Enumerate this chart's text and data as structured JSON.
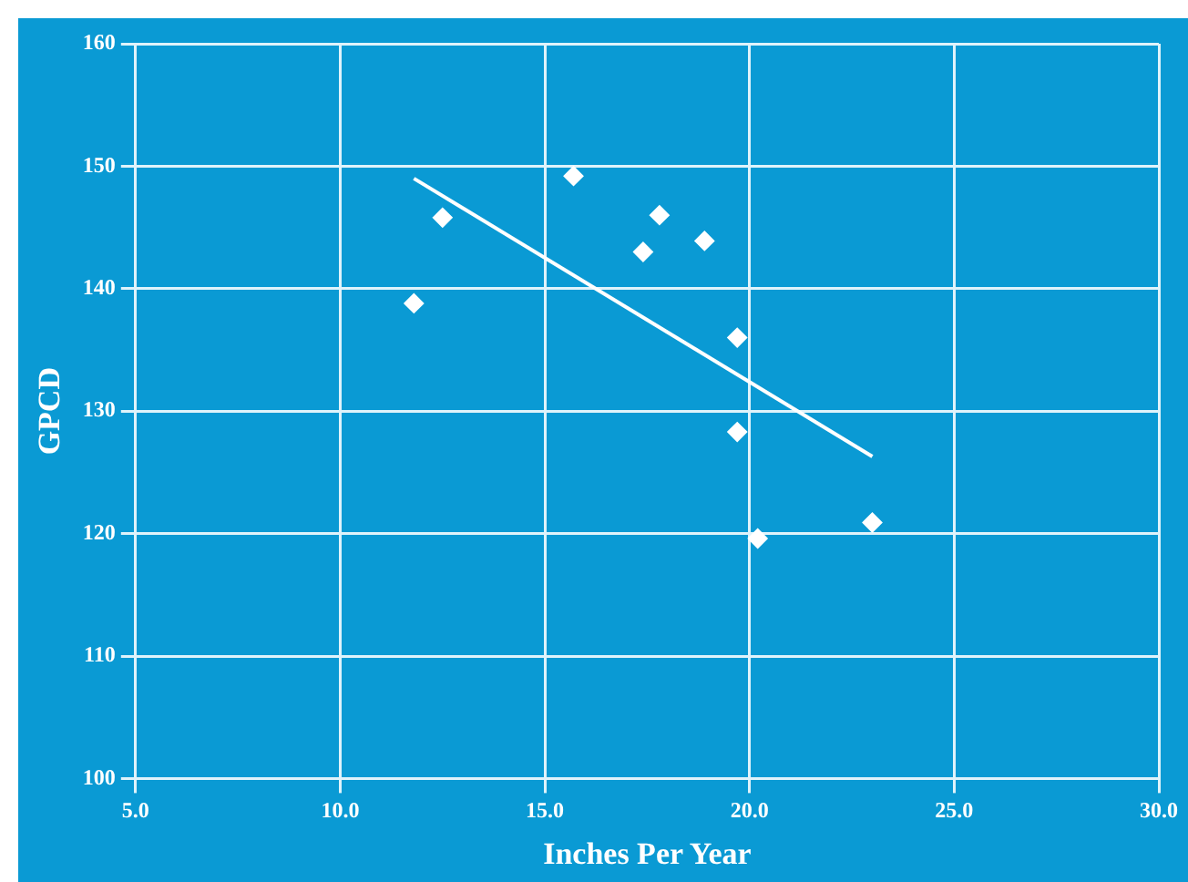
{
  "chart_data": {
    "type": "scatter",
    "xlabel": "Inches Per Year",
    "ylabel": "GPCD",
    "xlim": [
      5,
      30
    ],
    "xticks": [
      {
        "value": 5,
        "label": "5.0"
      },
      {
        "value": 10,
        "label": "10.0"
      },
      {
        "value": 15,
        "label": "15.0"
      },
      {
        "value": 20,
        "label": "20.0"
      },
      {
        "value": 25,
        "label": "25.0"
      },
      {
        "value": 30,
        "label": "30.0"
      }
    ],
    "ylim": [
      100,
      160
    ],
    "yticks": [
      100,
      110,
      120,
      130,
      140,
      150,
      160
    ],
    "grid": true,
    "series": [
      {
        "marker": "diamond",
        "color": "#ffffff",
        "x": [
          11.8,
          12.5,
          15.7,
          17.4,
          17.8,
          18.9,
          19.7,
          19.7,
          20.2,
          23.0
        ],
        "values": [
          138.8,
          145.8,
          149.2,
          143.0,
          146.0,
          143.9,
          136.0,
          128.3,
          119.6,
          120.9
        ]
      },
      {
        "type": "line",
        "marker": "none",
        "color": "#ffffff",
        "x": [
          11.8,
          23.0
        ],
        "values": [
          149.0,
          126.3
        ]
      }
    ]
  }
}
